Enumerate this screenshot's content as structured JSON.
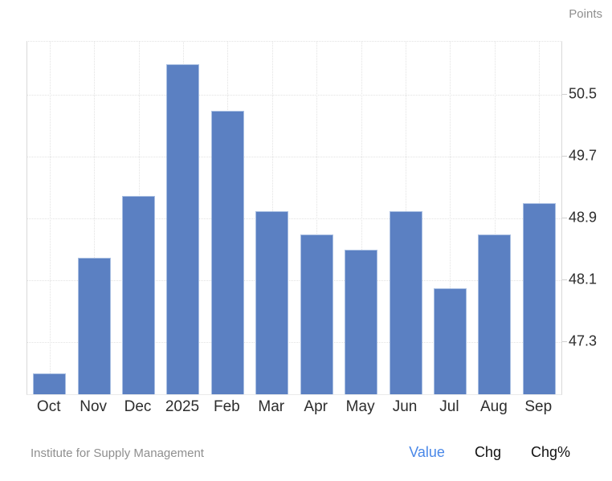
{
  "header": {
    "unit_label": "Points"
  },
  "footer": {
    "source": "Institute for Supply Management",
    "links": [
      {
        "label": "Value",
        "active": true
      },
      {
        "label": "Chg",
        "active": false
      },
      {
        "label": "Chg%",
        "active": false
      }
    ]
  },
  "colors": {
    "bar": "#5b80c2",
    "bar_border": "#a9bfe2",
    "accent_link": "#4a88e8",
    "grid": "#e2e2e2",
    "axis": "#d9d9d9",
    "text": "#2d2d2d",
    "muted": "#8f8f8f"
  },
  "chart_data": {
    "type": "bar",
    "title": "",
    "xlabel": "",
    "ylabel": "Points",
    "categories": [
      "Oct",
      "Nov",
      "Dec",
      "2025",
      "Feb",
      "Mar",
      "Apr",
      "May",
      "Jun",
      "Jul",
      "Aug",
      "Sep"
    ],
    "values": [
      46.9,
      48.4,
      49.2,
      50.9,
      50.3,
      49.0,
      48.7,
      48.5,
      49.0,
      48.0,
      48.7,
      49.1
    ],
    "y_ticks": [
      50.5,
      49.7,
      48.9,
      48.1,
      47.3
    ],
    "y_tick_labels": [
      "50.5",
      "49.7",
      "48.9",
      "48.1",
      "47.3"
    ],
    "ylim": [
      46.63,
      51.19
    ],
    "grid": true,
    "gridline_style": "dotted",
    "y_axis_position": "right",
    "legend": false,
    "source": "Institute for Supply Management"
  }
}
